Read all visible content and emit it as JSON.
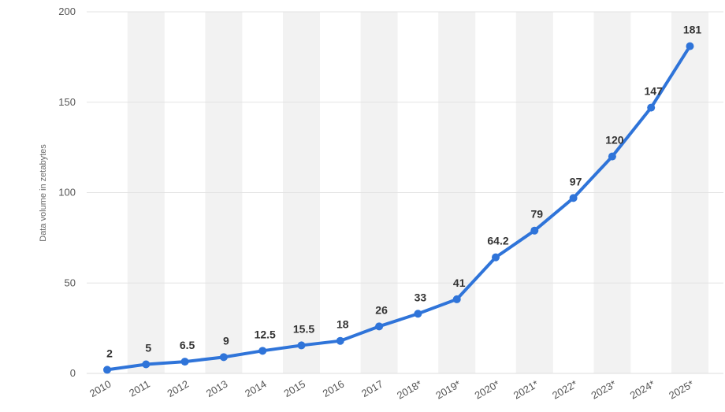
{
  "chart_data": {
    "type": "line",
    "title": "",
    "xlabel": "",
    "ylabel": "Data volume in zetabytes",
    "categories": [
      "2010",
      "2011",
      "2012",
      "2013",
      "2014",
      "2015",
      "2016",
      "2017",
      "2018*",
      "2019*",
      "2020*",
      "2021*",
      "2022*",
      "2023*",
      "2024*",
      "2025*"
    ],
    "series": [
      {
        "name": "",
        "values": [
          2,
          5,
          6.5,
          9,
          12.5,
          15.5,
          18,
          26,
          33,
          41,
          64.2,
          79,
          97,
          120,
          147,
          181
        ],
        "labels": [
          "2",
          "5",
          "6.5",
          "9",
          "12.5",
          "15.5",
          "18",
          "26",
          "33",
          "41",
          "64.2",
          "79",
          "97",
          "120",
          "147",
          "181"
        ]
      }
    ],
    "yticks": [
      "0",
      "50",
      "100",
      "150",
      "200"
    ],
    "ylim": [
      0,
      200
    ],
    "grid": true,
    "alternating_column_shading": true,
    "colors": {
      "line": "#2f74d9",
      "shade": "#f2f2f2",
      "grid": "#e3e3e3",
      "axis_text": "#555555",
      "label_text": "#333333",
      "ylabel_text": "#666666"
    }
  }
}
